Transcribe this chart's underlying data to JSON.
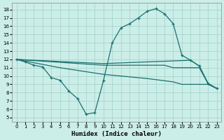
{
  "xlabel": "Humidex (Indice chaleur)",
  "background_color": "#cceee8",
  "grid_color": "#aad8d0",
  "line_color": "#1a7070",
  "xlim": [
    -0.5,
    23.5
  ],
  "ylim": [
    4.5,
    18.8
  ],
  "xticks": [
    0,
    1,
    2,
    3,
    4,
    5,
    6,
    7,
    8,
    9,
    10,
    11,
    12,
    13,
    14,
    15,
    16,
    17,
    18,
    19,
    20,
    21,
    22,
    23
  ],
  "yticks": [
    5,
    6,
    7,
    8,
    9,
    10,
    11,
    12,
    13,
    14,
    15,
    16,
    17,
    18
  ],
  "curve_main": {
    "x": [
      0,
      1,
      2,
      3,
      4,
      5,
      6,
      7,
      8,
      9,
      10,
      11,
      12,
      13,
      14,
      15,
      16,
      17,
      18,
      19,
      20,
      21,
      22,
      23
    ],
    "y": [
      12,
      11.7,
      11.3,
      11.1,
      9.8,
      9.5,
      8.2,
      7.3,
      5.4,
      5.6,
      9.5,
      14.0,
      15.8,
      16.3,
      17.0,
      17.8,
      18.1,
      17.5,
      16.3,
      12.5,
      11.9,
      11.2,
      9.1,
      8.5
    ]
  },
  "line_flat1": {
    "x": [
      0,
      10,
      20,
      21,
      22,
      23
    ],
    "y": [
      12,
      11.5,
      11.9,
      11.2,
      9.1,
      8.5
    ]
  },
  "line_flat2": {
    "x": [
      0,
      10,
      17,
      18,
      19,
      20,
      21,
      22,
      23
    ],
    "y": [
      12,
      11.3,
      11.3,
      11.0,
      11.0,
      11.0,
      11.0,
      9.1,
      8.5
    ]
  },
  "line_diagonal": {
    "x": [
      0,
      5,
      10,
      15,
      18,
      19,
      20,
      21,
      22,
      23
    ],
    "y": [
      12,
      11.0,
      10.2,
      9.7,
      9.3,
      9.0,
      9.0,
      9.0,
      9.0,
      8.5
    ]
  }
}
